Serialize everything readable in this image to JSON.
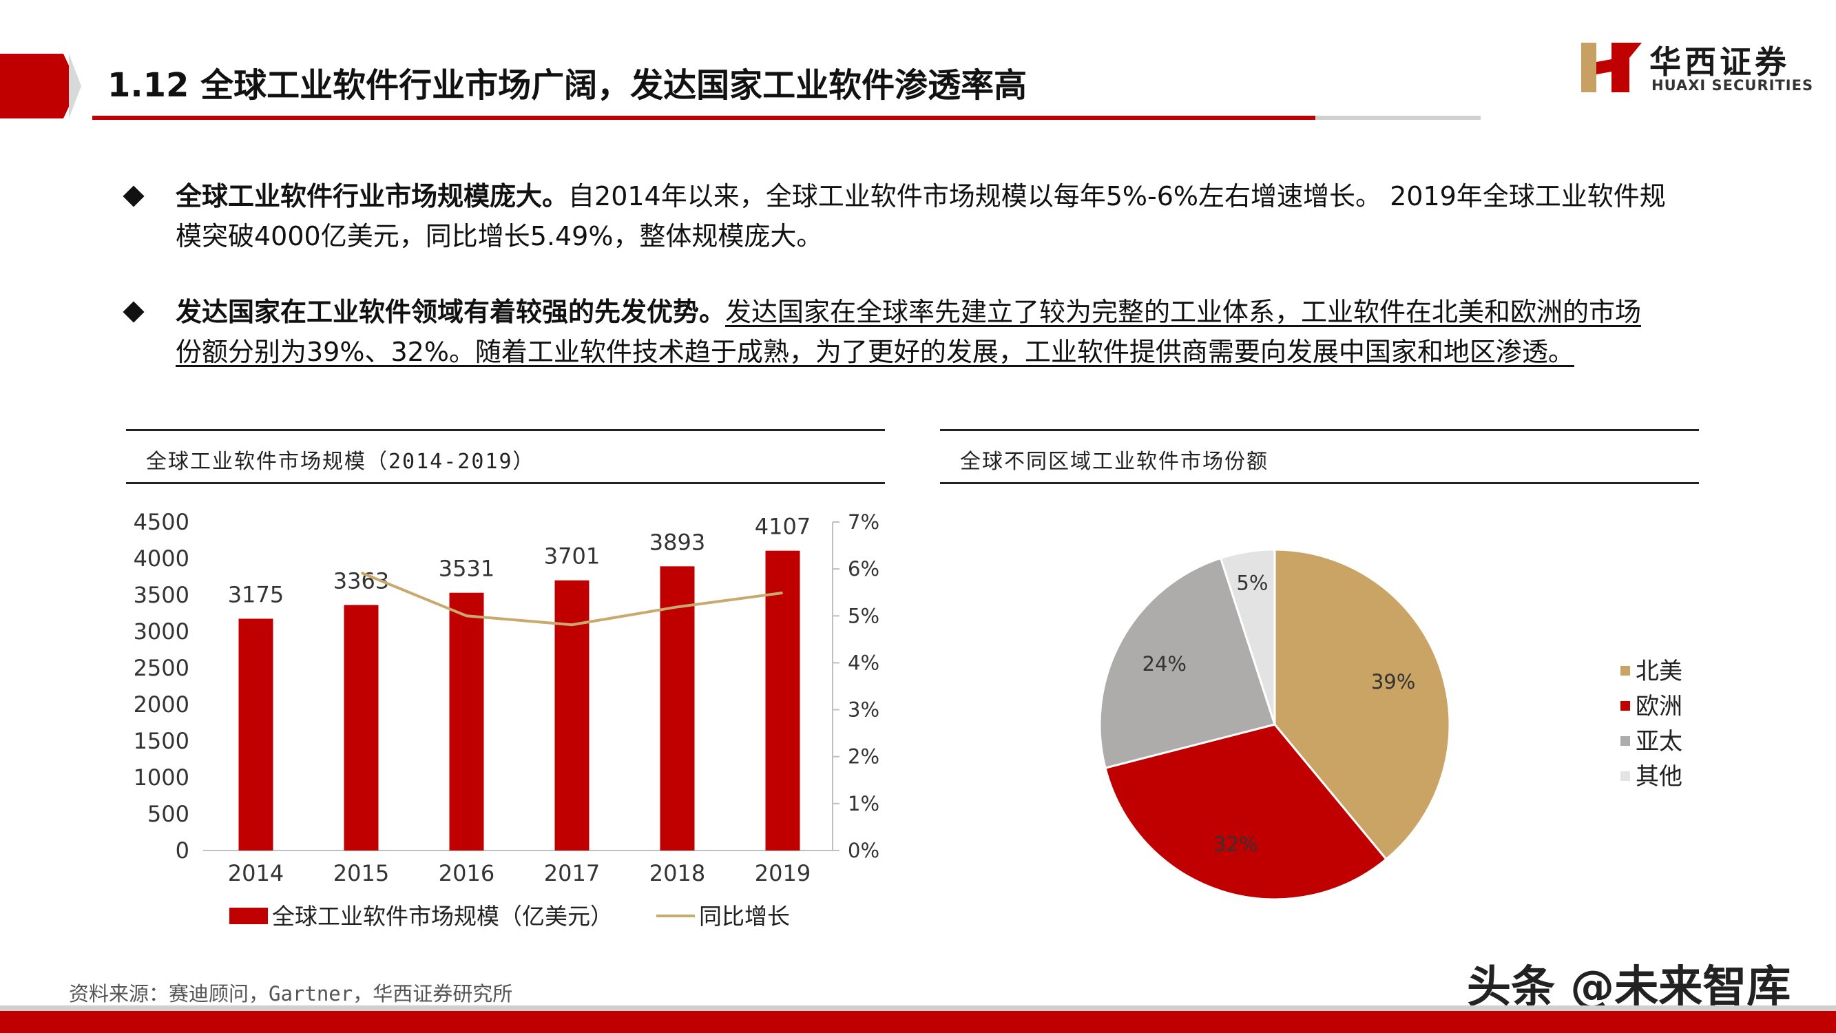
{
  "header": {
    "title": "1.12 全球工业软件行业市场广阔，发达国家工业软件渗透率高",
    "logo_cn": "华西证券",
    "logo_en": "HUAXI SECURITIES"
  },
  "bullets": [
    {
      "bold": "全球工业软件行业市场规模庞大。",
      "line1_rest": "自2014年以来，全球工业软件市场规模以每年5%-6%左右增速增长。 2019年全球工业软件规",
      "line2": "模突破4000亿美元，同比增长5.49%，整体规模庞大。"
    },
    {
      "bold": "发达国家在工业软件领域有着较强的先发优势。",
      "line1_rest": "发达国家在全球率先建立了较为完整的工业体系，工业软件在北美和欧洲的市场",
      "line2": "份额分别为39%、32%。随着工业软件技术趋于成熟，为了更好的发展，工业软件提供商需要向发展中国家和地区渗透。"
    }
  ],
  "left_panel": {
    "title": "全球工业软件市场规模（2014-2019）"
  },
  "right_panel": {
    "title": "全球不同区域工业软件市场份额"
  },
  "chart_data": [
    {
      "type": "bar",
      "categories": [
        "2014",
        "2015",
        "2016",
        "2017",
        "2018",
        "2019"
      ],
      "series": [
        {
          "name": "全球工业软件市场规模（亿美元）",
          "kind": "bar",
          "axis": "left",
          "values": [
            3175,
            3363,
            3531,
            3701,
            3893,
            4107
          ],
          "color": "#c00000"
        },
        {
          "name": "同比增长",
          "kind": "line",
          "axis": "right",
          "values": [
            null,
            5.92,
            5.0,
            4.81,
            5.19,
            5.49
          ],
          "color": "#c8a96e"
        }
      ],
      "ylim": [
        0,
        4500
      ],
      "yticks": [
        0,
        500,
        1000,
        1500,
        2000,
        2500,
        3000,
        3500,
        4000,
        4500
      ],
      "y2lim": [
        0,
        7
      ],
      "y2ticks": [
        "0%",
        "1%",
        "2%",
        "3%",
        "4%",
        "5%",
        "6%",
        "7%"
      ],
      "legend": "bottom"
    },
    {
      "type": "pie",
      "labels": [
        "北美",
        "欧洲",
        "亚太",
        "其他"
      ],
      "values": [
        39,
        32,
        24,
        5
      ],
      "value_labels": [
        "39%",
        "32%",
        "24%",
        "5%"
      ],
      "colors": [
        "#caa464",
        "#c00000",
        "#aeabab",
        "#e3e3e3"
      ],
      "legend": "right"
    }
  ],
  "footer": {
    "source": "资料来源：赛迪顾问，Gartner，华西证券研究所",
    "watermark": "头条 @未来智库"
  }
}
